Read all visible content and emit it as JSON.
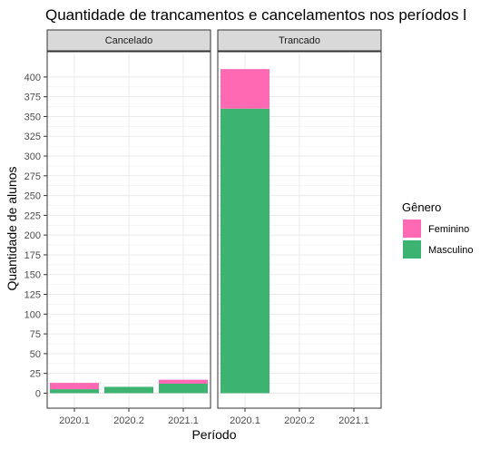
{
  "chart_data": {
    "type": "bar",
    "stacked": true,
    "title": "Quantidade de trancamentos e cancelamentos nos períodos l",
    "xlabel": "Período",
    "ylabel": "Quantidade de alunos",
    "categories": [
      "2020.1",
      "2020.2",
      "2021.1"
    ],
    "yticks": [
      0,
      25,
      50,
      75,
      100,
      125,
      150,
      175,
      200,
      225,
      250,
      275,
      300,
      325,
      350,
      375,
      400
    ],
    "ylim": [
      -19,
      432
    ],
    "grid": true,
    "legend": {
      "title": "Gênero",
      "position": "right",
      "entries": [
        {
          "name": "Feminino",
          "color": "#ff69b4"
        },
        {
          "name": "Masculino",
          "color": "#3cb371"
        }
      ]
    },
    "panels": [
      {
        "label": "Cancelado",
        "series": [
          {
            "name": "Masculino",
            "values": [
              5,
              8,
              12
            ]
          },
          {
            "name": "Feminino",
            "values": [
              8,
              0,
              5
            ]
          }
        ]
      },
      {
        "label": "Trancado",
        "series": [
          {
            "name": "Masculino",
            "values": [
              360,
              0,
              0
            ]
          },
          {
            "name": "Feminino",
            "values": [
              50,
              0,
              0
            ]
          }
        ]
      }
    ]
  }
}
